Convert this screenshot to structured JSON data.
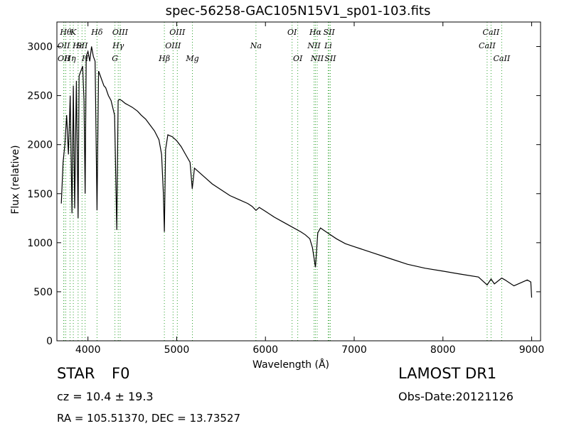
{
  "title": "spec-56258-GAC105N15V1_sp01-103.fits",
  "footer": {
    "object_class": "STAR",
    "subclass": "F0",
    "survey": "LAMOST DR1",
    "cz": "cz = 10.4  ± 19.3",
    "obs_date": "Obs-Date:20121126",
    "coords": "RA = 105.51370, DEC = 13.73527"
  },
  "colors": {
    "spectrum": "#000000",
    "line_marker": "#2ca02c",
    "axes": "#000000"
  },
  "chart_data": {
    "type": "line",
    "title": "spec-56258-GAC105N15V1_sp01-103.fits",
    "xlabel": "Wavelength (Å)",
    "ylabel": "Flux (relative)",
    "xlim": [
      3650,
      9100
    ],
    "ylim": [
      0,
      3250
    ],
    "xticks": [
      4000,
      5000,
      6000,
      7000,
      8000,
      9000
    ],
    "yticks": [
      0,
      500,
      1000,
      1500,
      2000,
      2500,
      3000
    ],
    "grid": false,
    "series": [
      {
        "x": [
          3700,
          3720,
          3740,
          3760,
          3780,
          3800,
          3820,
          3835,
          3850,
          3870,
          3889,
          3900,
          3920,
          3940,
          3955,
          3968,
          3980,
          4000,
          4020,
          4040,
          4060,
          4080,
          4102,
          4120,
          4140,
          4160,
          4180,
          4200,
          4230,
          4260,
          4300,
          4325,
          4340,
          4355,
          4380,
          4420,
          4460,
          4500,
          4560,
          4600,
          4650,
          4700,
          4750,
          4800,
          4830,
          4850,
          4861,
          4875,
          4900,
          4950,
          5000,
          5050,
          5100,
          5150,
          5175,
          5200,
          5300,
          5400,
          5500,
          5600,
          5700,
          5800,
          5850,
          5893,
          5930,
          6000,
          6100,
          6200,
          6300,
          6400,
          6450,
          6500,
          6530,
          6563,
          6590,
          6620,
          6700,
          6800,
          6900,
          7000,
          7200,
          7400,
          7600,
          7800,
          8000,
          8200,
          8400,
          8498,
          8542,
          8580,
          8662,
          8700,
          8800,
          8900,
          8950,
          8990,
          9000
        ],
        "values": [
          1400,
          1820,
          2000,
          2300,
          1900,
          2500,
          1300,
          2600,
          1350,
          2650,
          1250,
          2700,
          2750,
          2800,
          2450,
          1500,
          2900,
          2950,
          2850,
          3000,
          2900,
          2850,
          1330,
          2750,
          2700,
          2650,
          2600,
          2580,
          2500,
          2450,
          2300,
          1130,
          2450,
          2460,
          2450,
          2420,
          2400,
          2380,
          2340,
          2300,
          2260,
          2200,
          2140,
          2050,
          1900,
          1500,
          1110,
          1950,
          2100,
          2080,
          2040,
          1980,
          1900,
          1820,
          1550,
          1760,
          1680,
          1600,
          1540,
          1480,
          1440,
          1400,
          1370,
          1330,
          1360,
          1320,
          1260,
          1210,
          1160,
          1110,
          1080,
          1040,
          950,
          750,
          1100,
          1150,
          1100,
          1040,
          990,
          960,
          900,
          840,
          780,
          740,
          710,
          680,
          650,
          570,
          630,
          580,
          640,
          620,
          560,
          600,
          620,
          600,
          440
        ]
      }
    ],
    "lines": [
      {
        "wavelength": 3727,
        "label": "OII",
        "row": 1
      },
      {
        "wavelength": 3729,
        "label": "OII",
        "row": 2
      },
      {
        "wavelength": 3750,
        "label": "Hθ",
        "row": 0
      },
      {
        "wavelength": 3798,
        "label": "Hη",
        "row": 2
      },
      {
        "wavelength": 3835,
        "label": "K",
        "row": 0
      },
      {
        "wavelength": 3889,
        "label": "Hε",
        "row": 1
      },
      {
        "wavelength": 3933,
        "label": "SII",
        "row": 1
      },
      {
        "wavelength": 3968,
        "label": "H",
        "row": 2
      },
      {
        "wavelength": 4102,
        "label": "Hδ",
        "row": 0
      },
      {
        "wavelength": 4304,
        "label": "G",
        "row": 2
      },
      {
        "wavelength": 4341,
        "label": "Hγ",
        "row": 1
      },
      {
        "wavelength": 4363,
        "label": "OIII",
        "row": 0
      },
      {
        "wavelength": 4861,
        "label": "Hβ",
        "row": 2
      },
      {
        "wavelength": 4959,
        "label": "OIII",
        "row": 1
      },
      {
        "wavelength": 5007,
        "label": "OIII",
        "row": 0
      },
      {
        "wavelength": 5177,
        "label": "Mg",
        "row": 2
      },
      {
        "wavelength": 5893,
        "label": "Na",
        "row": 1
      },
      {
        "wavelength": 6300,
        "label": "OI",
        "row": 0
      },
      {
        "wavelength": 6364,
        "label": "OI",
        "row": 2
      },
      {
        "wavelength": 6548,
        "label": "NII",
        "row": 1
      },
      {
        "wavelength": 6563,
        "label": "Hα",
        "row": 0
      },
      {
        "wavelength": 6583,
        "label": "NII",
        "row": 2
      },
      {
        "wavelength": 6707,
        "label": "Li",
        "row": 1
      },
      {
        "wavelength": 6717,
        "label": "SII",
        "row": 0
      },
      {
        "wavelength": 6731,
        "label": "SII",
        "row": 2
      },
      {
        "wavelength": 8498,
        "label": "CaII",
        "row": 1
      },
      {
        "wavelength": 8542,
        "label": "CaII",
        "row": 0
      },
      {
        "wavelength": 8662,
        "label": "CaII",
        "row": 2
      }
    ]
  }
}
